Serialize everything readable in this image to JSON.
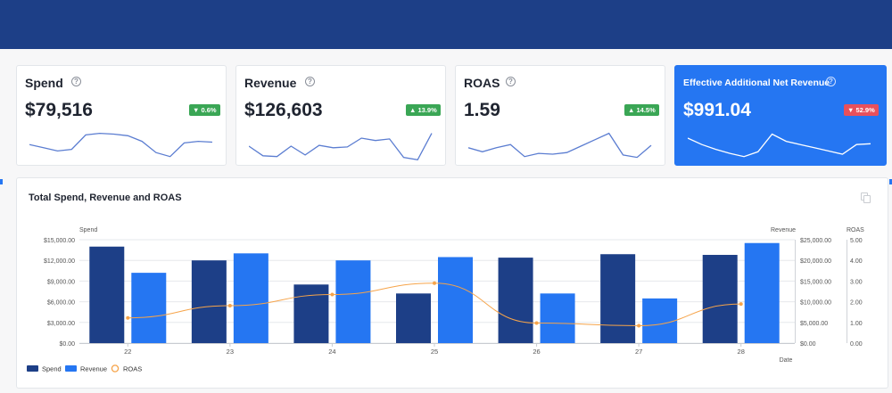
{
  "cards": [
    {
      "title": "Spend",
      "value": "$79,516",
      "badge": "▼ 0.6%",
      "badge_dir": "down",
      "badge_color": "#3aa655",
      "spark": [
        22,
        18,
        14,
        16,
        34,
        36,
        35,
        33,
        26,
        12,
        7,
        24,
        26,
        25
      ]
    },
    {
      "title": "Revenue",
      "value": "$126,603",
      "badge": "▲ 13.9%",
      "badge_dir": "up",
      "badge_color": "#3aa655",
      "spark": [
        20,
        8,
        7,
        20,
        9,
        21,
        18,
        19,
        30,
        27,
        29,
        6,
        3,
        36
      ]
    },
    {
      "title": "ROAS",
      "value": "1.59",
      "badge": "▲ 14.5%",
      "badge_dir": "up",
      "badge_color": "#3aa655",
      "spark": [
        18,
        13,
        18,
        22,
        7,
        11,
        10,
        12,
        20,
        28,
        36,
        9,
        6,
        21
      ]
    },
    {
      "title": "Effective Additional Net Revenue",
      "value": "$991.04",
      "badge": "▼ 52.9%",
      "badge_dir": "down",
      "badge_color": "#e8505b",
      "spark": [
        30,
        22,
        16,
        11,
        7,
        13,
        35,
        26,
        22,
        18,
        14,
        10,
        22,
        23
      ]
    }
  ],
  "panel": {
    "title": "Total Spend, Revenue and ROAS"
  },
  "chart_data": {
    "type": "bar",
    "title": "Total Spend, Revenue and ROAS",
    "xlabel": "Date",
    "categories": [
      "22",
      "23",
      "24",
      "25",
      "26",
      "27",
      "28"
    ],
    "series": [
      {
        "name": "Spend",
        "axis": "Spend",
        "type": "bar",
        "color": "#1d3f87",
        "values": [
          14000,
          12000,
          8500,
          7200,
          12400,
          12900,
          12800
        ]
      },
      {
        "name": "Revenue",
        "axis": "Revenue",
        "type": "bar",
        "color": "#2576f2",
        "values": [
          17000,
          21700,
          20000,
          20800,
          12000,
          10800,
          24200
        ]
      },
      {
        "name": "ROAS",
        "axis": "ROAS",
        "type": "line",
        "color": "#f6a44a",
        "values": [
          1.22,
          1.81,
          2.35,
          2.9,
          0.97,
          0.84,
          1.89
        ]
      }
    ],
    "axes": {
      "Spend": {
        "label": "Spend",
        "ticks": [
          "$0.00",
          "$3,000.00",
          "$6,000.00",
          "$9,000.00",
          "$12,000.00",
          "$15,000.00"
        ],
        "min": 0,
        "max": 15000
      },
      "Revenue": {
        "label": "Revenue",
        "ticks": [
          "$0.00",
          "$5,000.00",
          "$10,000.00",
          "$15,000.00",
          "$20,000.00",
          "$25,000.00"
        ],
        "min": 0,
        "max": 25000
      },
      "ROAS": {
        "label": "ROAS",
        "ticks": [
          "0.00",
          "1.00",
          "2.00",
          "3.00",
          "4.00",
          "5.00"
        ],
        "min": 0,
        "max": 5
      }
    },
    "legend_position": "bottom-left",
    "grid": true
  }
}
